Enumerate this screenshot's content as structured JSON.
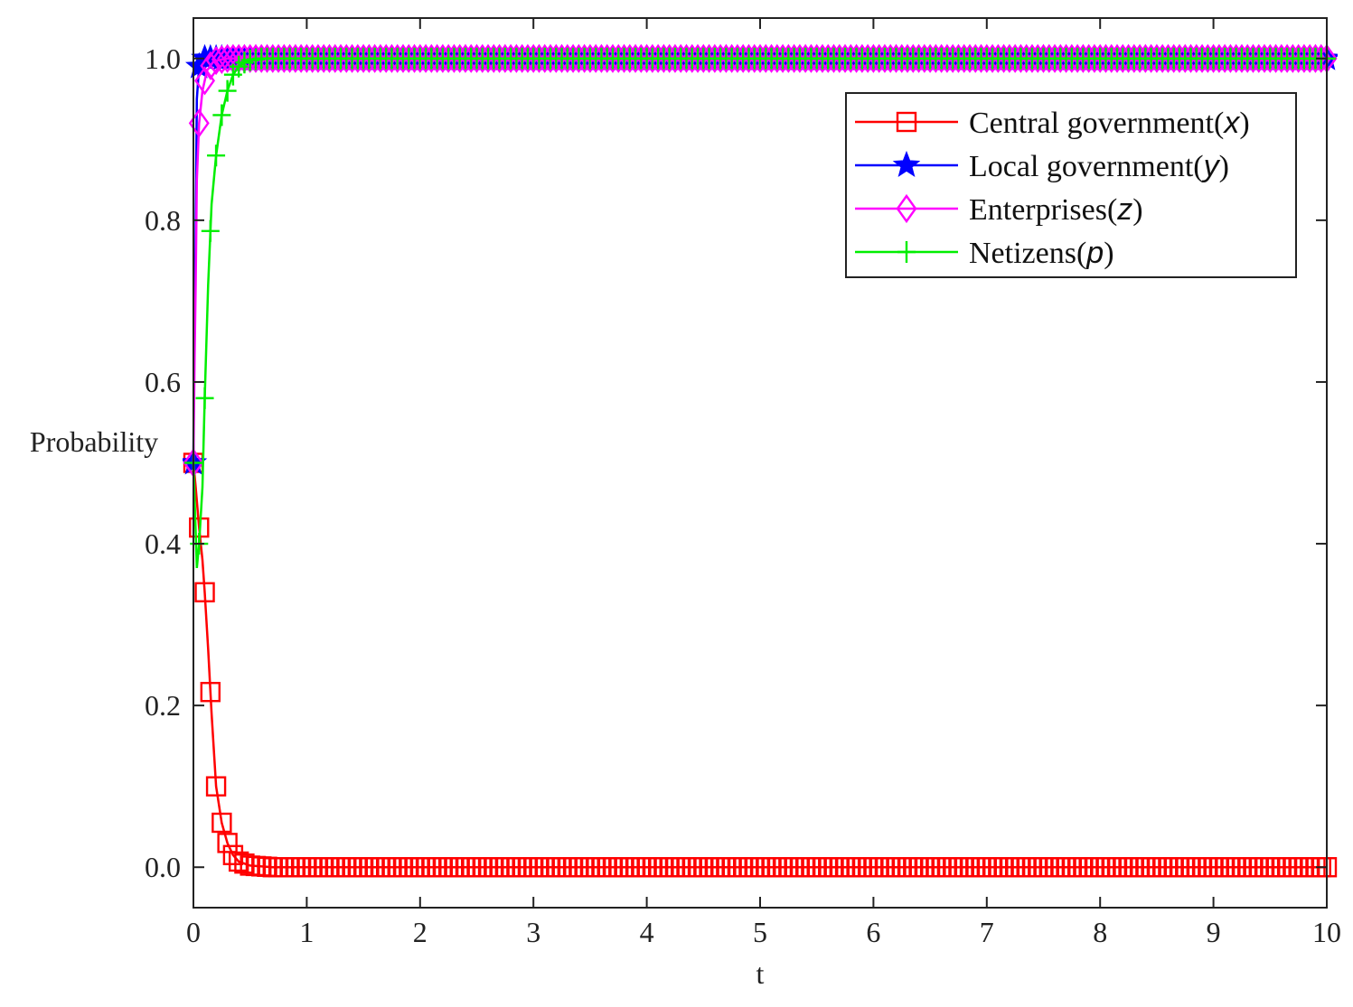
{
  "chart_data": {
    "type": "line",
    "title": "",
    "xlabel": "t",
    "ylabel": "Probability",
    "xlim": [
      0,
      10
    ],
    "ylim": [
      -0.05,
      1.05
    ],
    "xticks": [
      "0",
      "1",
      "2",
      "3",
      "4",
      "5",
      "6",
      "7",
      "8",
      "9",
      "10"
    ],
    "yticks": [
      "0.0",
      "0.2",
      "0.4",
      "0.6",
      "0.8",
      "1.0"
    ],
    "grid": false,
    "legend_position": "top-right",
    "marker_step": 0.05,
    "series": [
      {
        "name": "Central government",
        "var": "x",
        "color": "#ff0000",
        "marker": "square",
        "x": [
          0,
          0.02,
          0.05,
          0.08,
          0.1,
          0.13,
          0.16,
          0.2,
          0.25,
          0.3,
          0.35,
          0.4,
          0.5,
          0.7,
          1.0,
          10
        ],
        "y": [
          0.5,
          0.47,
          0.42,
          0.38,
          0.34,
          0.27,
          0.19,
          0.1,
          0.055,
          0.03,
          0.015,
          0.007,
          0.002,
          0.0,
          0.0,
          0.0
        ]
      },
      {
        "name": "Local government",
        "var": "y",
        "color": "#0000ff",
        "marker": "star",
        "x": [
          0,
          0.005,
          0.015,
          0.03,
          0.05,
          0.08,
          0.12,
          10
        ],
        "y": [
          0.5,
          0.62,
          0.71,
          0.95,
          0.99,
          1.0,
          1.0,
          1.0
        ]
      },
      {
        "name": "Enterprises",
        "var": "z",
        "color": "#ff00ff",
        "marker": "diamond",
        "x": [
          0,
          0.01,
          0.02,
          0.03,
          0.05,
          0.08,
          0.12,
          0.18,
          0.3,
          10
        ],
        "y": [
          0.5,
          0.63,
          0.72,
          0.85,
          0.92,
          0.96,
          0.985,
          0.997,
          1.0,
          1.0
        ]
      },
      {
        "name": "Netizens",
        "var": "p",
        "color": "#00ee00",
        "marker": "plus",
        "x": [
          0,
          0.03,
          0.05,
          0.08,
          0.1,
          0.13,
          0.16,
          0.2,
          0.25,
          0.3,
          0.35,
          0.4,
          0.45,
          0.5,
          0.6,
          0.8,
          1.0,
          10
        ],
        "y": [
          0.5,
          0.37,
          0.4,
          0.47,
          0.58,
          0.72,
          0.82,
          0.88,
          0.93,
          0.96,
          0.98,
          0.99,
          0.995,
          0.998,
          1.0,
          1.0,
          1.0,
          1.0
        ]
      }
    ]
  }
}
